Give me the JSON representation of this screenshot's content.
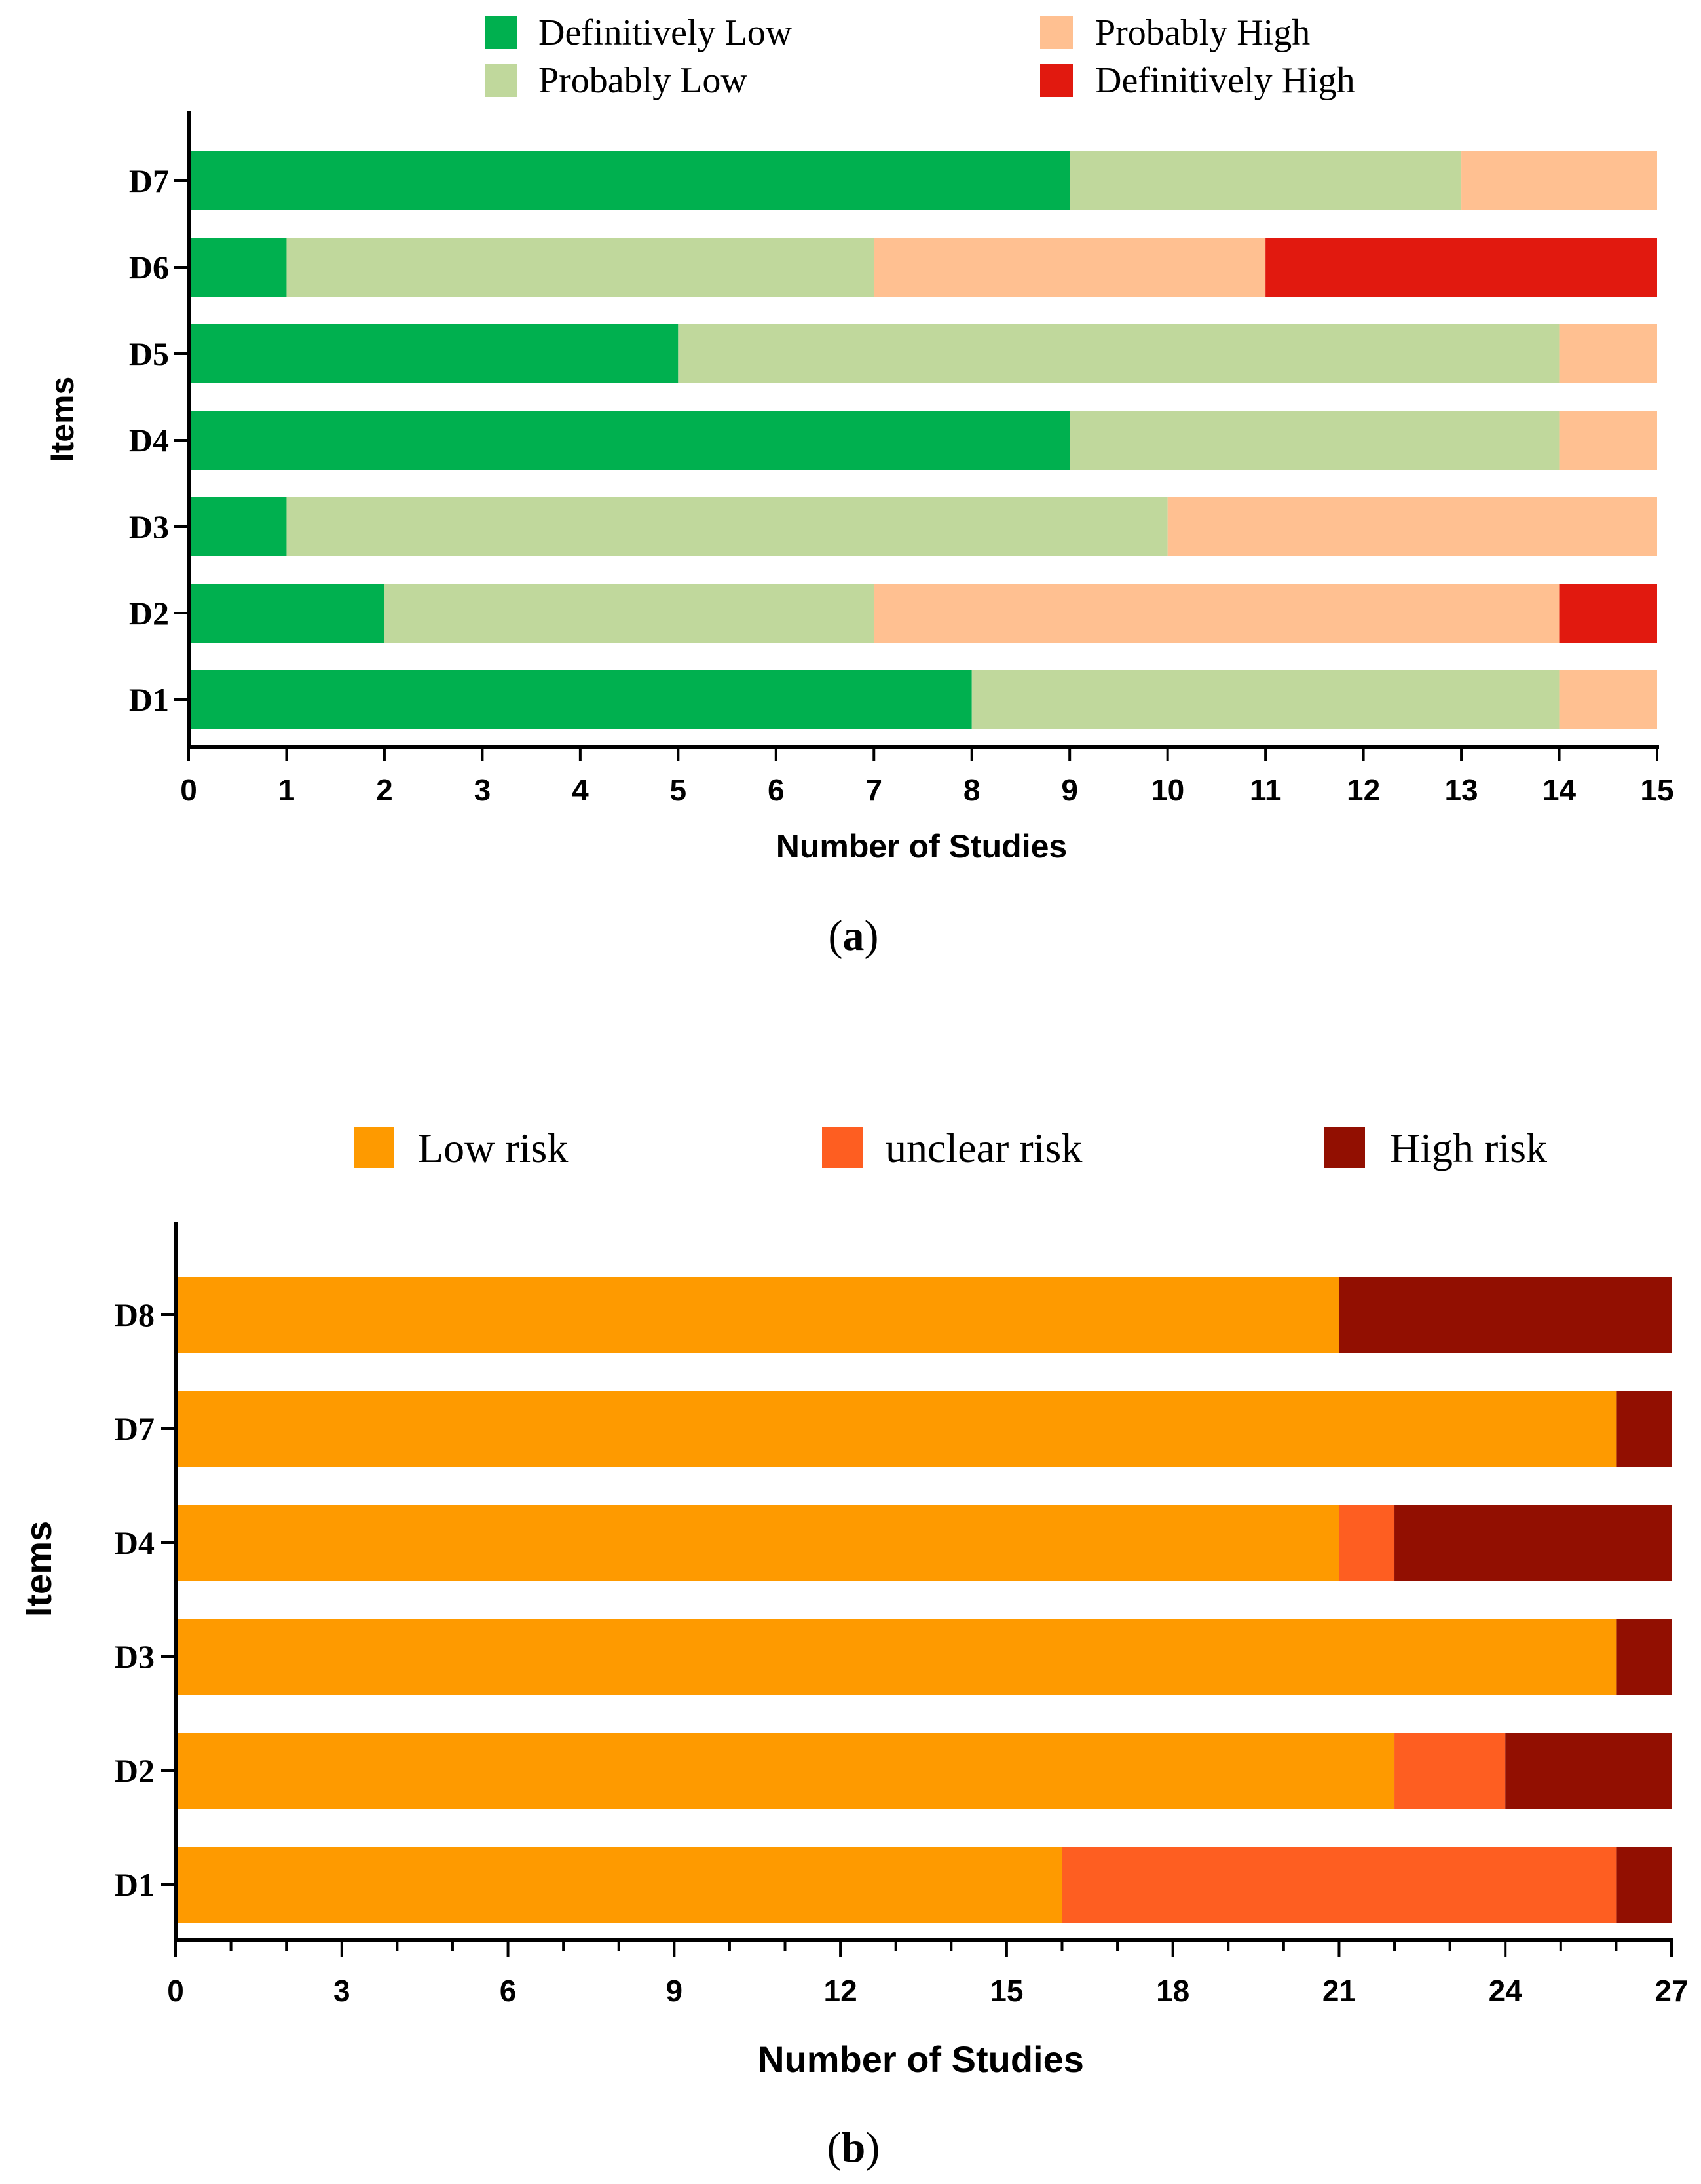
{
  "chart_data": [
    {
      "type": "bar",
      "orientation": "horizontal",
      "stacked": true,
      "caption_open": "(",
      "caption_letter": "a",
      "caption_close": ")",
      "xlabel": "Number of Studies",
      "ylabel": "Items",
      "xlim": [
        0,
        15
      ],
      "xticks": [
        0,
        1,
        2,
        3,
        4,
        5,
        6,
        7,
        8,
        9,
        10,
        11,
        12,
        13,
        14,
        15
      ],
      "categories": [
        "D7",
        "D6",
        "D5",
        "D4",
        "D3",
        "D2",
        "D1"
      ],
      "legend_position": "top",
      "series": [
        {
          "name": "Definitively Low",
          "color": "#00b04f",
          "values": [
            9,
            1,
            5,
            9,
            1,
            2,
            8
          ]
        },
        {
          "name": "Probably Low",
          "color": "#c0d89c",
          "values": [
            4,
            6,
            9,
            5,
            9,
            5,
            6
          ]
        },
        {
          "name": "Probably High",
          "color": "#ffc091",
          "values": [
            2,
            4,
            1,
            1,
            5,
            7,
            1
          ]
        },
        {
          "name": "Definitively High",
          "color": "#e1190f",
          "values": [
            0,
            4,
            0,
            0,
            0,
            1,
            0
          ]
        }
      ]
    },
    {
      "type": "bar",
      "orientation": "horizontal",
      "stacked": true,
      "caption_open": "(",
      "caption_letter": "b",
      "caption_close": ")",
      "xlabel": "Number of Studies",
      "ylabel": "Items",
      "xlim": [
        0,
        27
      ],
      "xticks": [
        0,
        3,
        6,
        9,
        12,
        15,
        18,
        21,
        24,
        27
      ],
      "minor_tick_step": 1,
      "categories": [
        "D8",
        "D7",
        "D4",
        "D3",
        "D2",
        "D1"
      ],
      "legend_position": "top",
      "series": [
        {
          "name": "Low risk",
          "color": "#fe9a00",
          "values": [
            21,
            26,
            21,
            26,
            22,
            16
          ]
        },
        {
          "name": "unclear risk",
          "color": "#fe5e21",
          "values": [
            0,
            0,
            1,
            0,
            2,
            10
          ]
        },
        {
          "name": "High risk",
          "color": "#920f01",
          "values": [
            6,
            1,
            5,
            1,
            3,
            1
          ]
        }
      ]
    }
  ]
}
